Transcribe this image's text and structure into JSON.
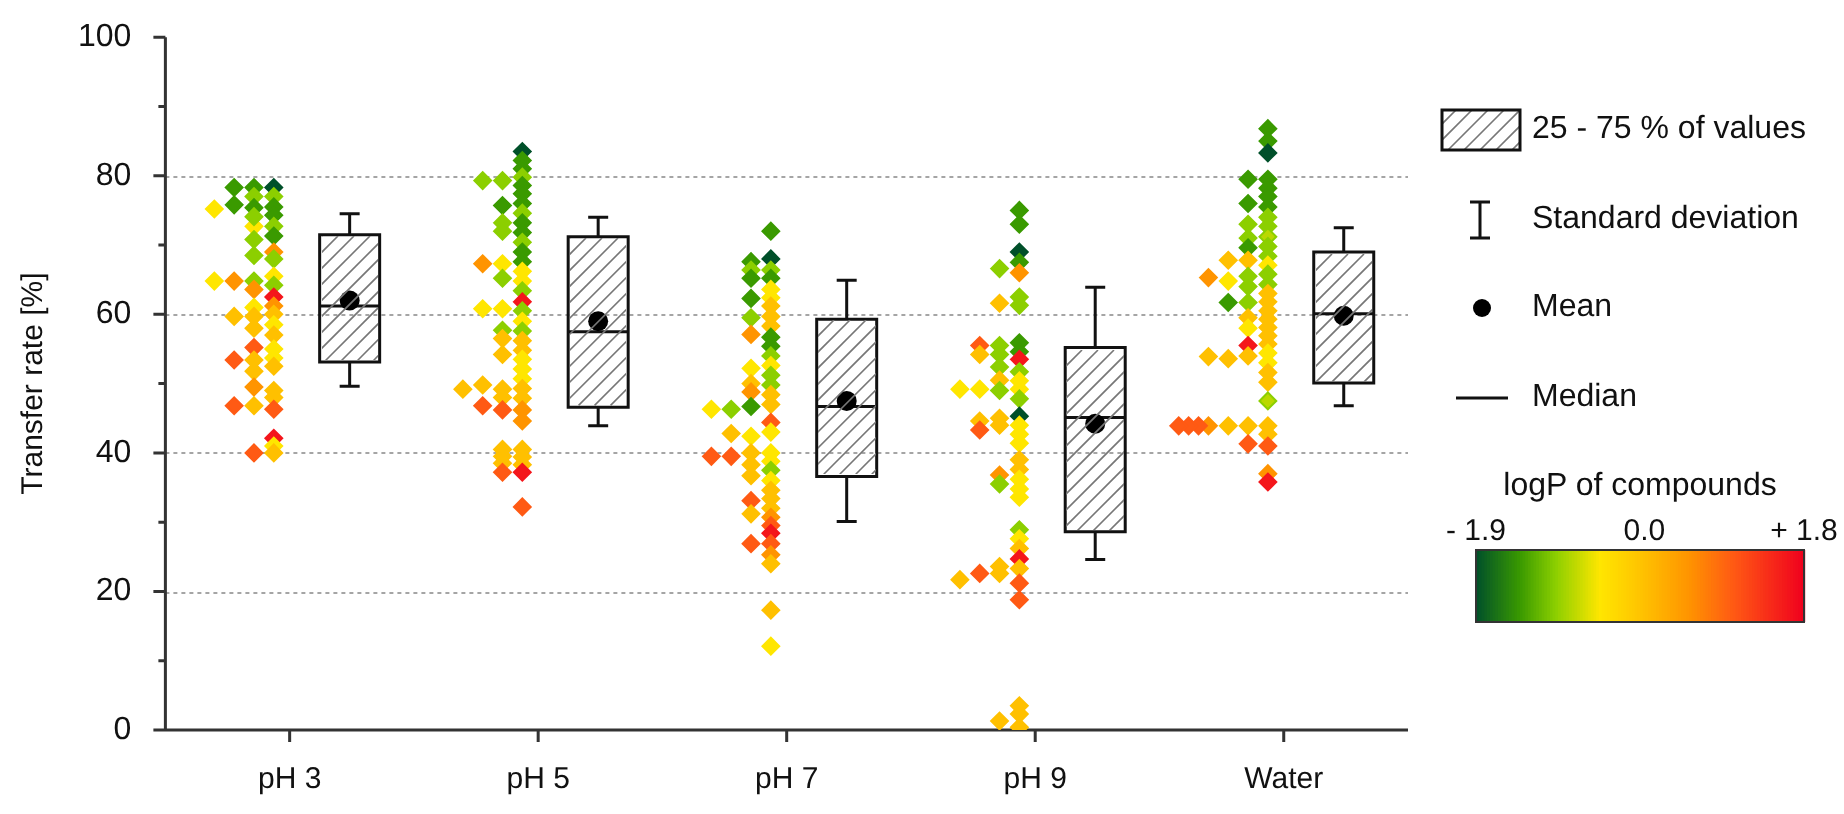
{
  "chart_data": {
    "type": "box",
    "ylabel": "Transfer rate [%]",
    "categories": [
      "pH 3",
      "pH 5",
      "pH 7",
      "pH 9",
      "Water"
    ],
    "ylim": [
      0,
      100
    ],
    "yticks": [
      0,
      {
        "value": 10,
        "label": null
      },
      20,
      {
        "value": 30,
        "label": null
      },
      40,
      {
        "value": 50,
        "label": null
      },
      60,
      {
        "value": 70,
        "label": null
      },
      80,
      {
        "value": 90,
        "label": null
      },
      100
    ],
    "grid": "y",
    "clabel": "logP of compounds",
    "clim": [
      -1.9,
      1.8
    ],
    "cticks": [
      {
        "value": -1.9,
        "label": "- 1.9"
      },
      {
        "value": 0,
        "label": "0.0"
      },
      {
        "value": 1.8,
        "label": "+ 1.8"
      }
    ],
    "annotations": [
      "25 - 75 % of values",
      "Standard deviation",
      "Mean",
      "Median"
    ],
    "series": [
      {
        "boxes": [
          {
            "low": 49.6,
            "q1": 53.1,
            "median": 61.2,
            "q3": 71.5,
            "high": 74.5,
            "mean": 62
          },
          {
            "low": 43.9,
            "q1": 46.6,
            "median": 57.5,
            "q3": 71.2,
            "high": 74,
            "mean": 59
          },
          {
            "low": 30.1,
            "q1": 36.6,
            "median": 46.7,
            "q3": 59.3,
            "high": 64.9,
            "mean": 47.5
          },
          {
            "low": 24.6,
            "q1": 28.6,
            "median": 45.1,
            "q3": 55.2,
            "high": 63.9,
            "mean": 44.2
          },
          {
            "low": 46.8,
            "q1": 50.1,
            "median": 60.1,
            "q3": 69,
            "high": 72.5,
            "mean": 59.8
          }
        ]
      },
      {
        "type": "scatter",
        "x": [
          "pH 3",
          "pH 3",
          "pH 3",
          "pH 3",
          "pH 3",
          "pH 3",
          "pH 3",
          "pH 3",
          "pH 3",
          "pH 3",
          "pH 3",
          "pH 3",
          "pH 3",
          "pH 3",
          "pH 3",
          "pH 3",
          "pH 3",
          "pH 3",
          "pH 3",
          "pH 3",
          "pH 3",
          "pH 3",
          "pH 3",
          "pH 3",
          "pH 3",
          "pH 3",
          "pH 3",
          "pH 3",
          "pH 3",
          "pH 3",
          "pH 3",
          "pH 3",
          "pH 3",
          "pH 3",
          "pH 3",
          "pH 3",
          "pH 3",
          "pH 3",
          "pH 3",
          "pH 3",
          "pH 3",
          "pH 3",
          "pH 3",
          "pH 3",
          "pH 3",
          "pH 3",
          "pH 3",
          "pH 3",
          "pH 3",
          "pH 3"
        ],
        "values": [
          78.3,
          77.0,
          75.5,
          74.3,
          72.7,
          71.3,
          69.0,
          68.0,
          65.5,
          64.2,
          62.5,
          61.2,
          60.0,
          58.5,
          57.0,
          55.0,
          53.7,
          52.5,
          49.0,
          48.0,
          46.3,
          42.1,
          41.0,
          40.0,
          78.3,
          77.0,
          75.4,
          72.7,
          70.8,
          68.5,
          64.8,
          63.6,
          61.0,
          59.7,
          58.0,
          55.2,
          53.4,
          51.8,
          49.5,
          46.8,
          40.0,
          78.3,
          75.8,
          74.1,
          64.8,
          59.7,
          53.4,
          46.8,
          75.2,
          64.8
        ],
        "cvalues": [
          -1.9,
          -1.0,
          -1.4,
          -1.4,
          -1.0,
          -1.4,
          0.5,
          -1.0,
          -0.5,
          -1.0,
          1.6,
          0.5,
          0,
          -0.5,
          0,
          -0.5,
          -0.5,
          0,
          0,
          0,
          1.0,
          1.6,
          -0.5,
          0,
          -1.4,
          -1.0,
          -1.4,
          -0.5,
          -1.0,
          -1.0,
          -1.0,
          0.5,
          -0.5,
          0,
          0,
          1.0,
          0,
          0,
          0.5,
          0,
          1.0,
          -1.4,
          -1.4,
          -1.0,
          0.5,
          0,
          1.0,
          1.0,
          -0.5,
          -0.5
        ],
        "colors": [
          "#00502a",
          "#8ccf00",
          "#3a9a00",
          "#3a9a00",
          "#8ccf00",
          "#3a9a00",
          "#ff9400",
          "#8ccf00",
          "#ffe600",
          "#8ccf00",
          "#f4161c",
          "#ff9400",
          "#ffc000",
          "#ffe600",
          "#ffc000",
          "#ffe600",
          "#ffe600",
          "#ffc000",
          "#ffc000",
          "#ffc000",
          "#ff5a14",
          "#f4161c",
          "#ffe600",
          "#ffc000",
          "#3a9a00",
          "#8ccf00",
          "#3a9a00",
          "#ffe600",
          "#8ccf00",
          "#8ccf00",
          "#8ccf00",
          "#ff9400",
          "#ffe600",
          "#ffc000",
          "#ffc000",
          "#ff5a14",
          "#ffc000",
          "#ffc000",
          "#ff9400",
          "#ffc000",
          "#ff5a14",
          "#3a9a00",
          "#3a9a00",
          "#8ccf00",
          "#ff9400",
          "#ffc000",
          "#ff5a14",
          "#ff5a14",
          "#ffe600",
          "#ffe600"
        ]
      },
      {
        "type": "scatter",
        "x": [
          "pH 5",
          "pH 5",
          "pH 5",
          "pH 5",
          "pH 5",
          "pH 5",
          "pH 5",
          "pH 5",
          "pH 5",
          "pH 5",
          "pH 5",
          "pH 5",
          "pH 5",
          "pH 5",
          "pH 5",
          "pH 5",
          "pH 5",
          "pH 5",
          "pH 5",
          "pH 5",
          "pH 5",
          "pH 5",
          "pH 5",
          "pH 5",
          "pH 5",
          "pH 5",
          "pH 5",
          "pH 5",
          "pH 5",
          "pH 5",
          "pH 5",
          "pH 5",
          "pH 5",
          "pH 5",
          "pH 5",
          "pH 5",
          "pH 5",
          "pH 5",
          "pH 5",
          "pH 5",
          "pH 5",
          "pH 5",
          "pH 5",
          "pH 5",
          "pH 5",
          "pH 5",
          "pH 5",
          "pH 5",
          "pH 5",
          "pH 5",
          "pH 5",
          "pH 5",
          "pH 5",
          "pH 5",
          "pH 5",
          "pH 5",
          "pH 5"
        ],
        "values": [
          83.5,
          82.2,
          81.0,
          79.8,
          78.6,
          77.4,
          76.0,
          74.6,
          73.2,
          71.8,
          70.4,
          69.0,
          67.6,
          66.2,
          64.8,
          63.4,
          61.8,
          60.5,
          59.0,
          57.6,
          56.2,
          54.8,
          53.5,
          52.1,
          50.7,
          49.3,
          47.9,
          46.2,
          44.6,
          40.5,
          39.4,
          38.3,
          37.2,
          32.2,
          79.3,
          75.7,
          73.2,
          72.0,
          67.3,
          65.2,
          60.8,
          57.7,
          56.5,
          54.2,
          49.2,
          48.0,
          46.2,
          40.5,
          39.5,
          38.5,
          37.2,
          79.3,
          67.3,
          60.8,
          49.8,
          46.8,
          49.2
        ],
        "cvalues": [
          -1.9,
          -1.4,
          -1.4,
          -1.0,
          -1.4,
          -1.4,
          -1.4,
          -1.0,
          -1.4,
          -1.4,
          -1.0,
          -1.4,
          -1.4,
          -0.5,
          -0.5,
          -1.0,
          1.6,
          -1.0,
          -0.5,
          -1.0,
          0,
          0,
          -0.5,
          -0.5,
          -0.5,
          0,
          0,
          0.5,
          0.5,
          0,
          0,
          0,
          1.6,
          1.0,
          -1.0,
          -1.4,
          -1.0,
          -1.0,
          -0.5,
          -1.0,
          -0.5,
          -1.0,
          0,
          0,
          0,
          0,
          1.0,
          0,
          0,
          0,
          1.0,
          -1.0,
          0.5,
          -0.5,
          0,
          1.0,
          0
        ],
        "colors": [
          "#00502a",
          "#3a9a00",
          "#3a9a00",
          "#8ccf00",
          "#3a9a00",
          "#3a9a00",
          "#3a9a00",
          "#8ccf00",
          "#3a9a00",
          "#3a9a00",
          "#8ccf00",
          "#3a9a00",
          "#3a9a00",
          "#ffe600",
          "#ffe600",
          "#8ccf00",
          "#f4161c",
          "#8ccf00",
          "#ffe600",
          "#8ccf00",
          "#ffc000",
          "#ffc000",
          "#ffe600",
          "#ffe600",
          "#ffe600",
          "#ffc000",
          "#ffc000",
          "#ff9400",
          "#ff9400",
          "#ffc000",
          "#ffc000",
          "#ffc000",
          "#f4161c",
          "#ff5a14",
          "#8ccf00",
          "#3a9a00",
          "#8ccf00",
          "#8ccf00",
          "#ffe600",
          "#8ccf00",
          "#ffe600",
          "#8ccf00",
          "#ffc000",
          "#ffc000",
          "#ffc000",
          "#ffc000",
          "#ff5a14",
          "#ffc000",
          "#ffc000",
          "#ffc000",
          "#ff5a14",
          "#8ccf00",
          "#ff9400",
          "#ffe600",
          "#ffc000",
          "#ff5a14",
          "#ffc000"
        ]
      },
      {
        "type": "scatter",
        "x": [
          "pH 7",
          "pH 7",
          "pH 7",
          "pH 7",
          "pH 7",
          "pH 7",
          "pH 7",
          "pH 7",
          "pH 7",
          "pH 7",
          "pH 7",
          "pH 7",
          "pH 7",
          "pH 7",
          "pH 7",
          "pH 7",
          "pH 7",
          "pH 7",
          "pH 7",
          "pH 7",
          "pH 7",
          "pH 7",
          "pH 7",
          "pH 7",
          "pH 7",
          "pH 7",
          "pH 7",
          "pH 7",
          "pH 7",
          "pH 7",
          "pH 7",
          "pH 7",
          "pH 7",
          "pH 7",
          "pH 7",
          "pH 7",
          "pH 7",
          "pH 7",
          "pH 7",
          "pH 7",
          "pH 7",
          "pH 7",
          "pH 7",
          "pH 7",
          "pH 7",
          "pH 7",
          "pH 7",
          "pH 7",
          "pH 7",
          "pH 7",
          "pH 7",
          "pH 7",
          "pH 7",
          "pH 7",
          "pH 7",
          "pH 7"
        ],
        "values": [
          72.0,
          68.0,
          66.4,
          65.2,
          63.6,
          62.4,
          61.2,
          59.7,
          58.3,
          56.7,
          55.4,
          54.0,
          52.6,
          51.2,
          49.8,
          48.4,
          47.0,
          44.4,
          43.0,
          40.0,
          38.8,
          37.5,
          36.0,
          34.6,
          33.4,
          32.0,
          30.7,
          29.5,
          28.4,
          26.9,
          25.3,
          24.0,
          17.3,
          12.1,
          67.6,
          66.4,
          62.3,
          59.5,
          57.1,
          52.2,
          50.0,
          48.8,
          46.7,
          42.4,
          40.0,
          38.3,
          36.7,
          33.1,
          31.2,
          26.9,
          65.2,
          46.3,
          42.8,
          39.5,
          46.3,
          39.5
        ],
        "cvalues": [
          -1.4,
          -1.9,
          -1.0,
          -1.4,
          -0.5,
          -0.5,
          0,
          0,
          0,
          -1.4,
          -1.4,
          -1.0,
          -0.5,
          -1.0,
          -1.0,
          0,
          0,
          1.0,
          -0.5,
          -0.5,
          -0.5,
          -1.0,
          -0.5,
          0,
          0,
          0,
          0.5,
          1.0,
          1.6,
          1.0,
          0.5,
          0,
          0,
          -0.5,
          -1.4,
          -1.0,
          -1.4,
          -1.0,
          0.5,
          -0.5,
          0,
          0.5,
          -1.4,
          -0.5,
          0,
          0,
          0,
          1.0,
          0,
          1.0,
          -1.4,
          -1.0,
          0,
          1.0,
          -0.5,
          1.0
        ],
        "colors": [
          "#3a9a00",
          "#00502a",
          "#8ccf00",
          "#3a9a00",
          "#ffe600",
          "#ffe600",
          "#ffc000",
          "#ffc000",
          "#ffc000",
          "#3a9a00",
          "#3a9a00",
          "#8ccf00",
          "#ffe600",
          "#8ccf00",
          "#8ccf00",
          "#ffc000",
          "#ffc000",
          "#ff5a14",
          "#ffe600",
          "#ffe600",
          "#ffe600",
          "#8ccf00",
          "#ffe600",
          "#ffc000",
          "#ffc000",
          "#ffc000",
          "#ff9400",
          "#ff5a14",
          "#f4161c",
          "#ff5a14",
          "#ff9400",
          "#ffc000",
          "#ffc000",
          "#ffe600",
          "#3a9a00",
          "#8ccf00",
          "#3a9a00",
          "#8ccf00",
          "#ff9400",
          "#ffe600",
          "#ffc000",
          "#ff9400",
          "#3a9a00",
          "#ffe600",
          "#ffc000",
          "#ffc000",
          "#ffc000",
          "#ff5a14",
          "#ffc000",
          "#ff5a14",
          "#3a9a00",
          "#8ccf00",
          "#ffc000",
          "#ff5a14",
          "#ffe600",
          "#ff5a14"
        ]
      },
      {
        "type": "scatter",
        "x": [
          "pH 9",
          "pH 9",
          "pH 9",
          "pH 9",
          "pH 9",
          "pH 9",
          "pH 9",
          "pH 9",
          "pH 9",
          "pH 9",
          "pH 9",
          "pH 9",
          "pH 9",
          "pH 9",
          "pH 9",
          "pH 9",
          "pH 9",
          "pH 9",
          "pH 9",
          "pH 9",
          "pH 9",
          "pH 9",
          "pH 9",
          "pH 9",
          "pH 9",
          "pH 9",
          "pH 9",
          "pH 9",
          "pH 9",
          "pH 9",
          "pH 9",
          "pH 9",
          "pH 9",
          "pH 9",
          "pH 9",
          "pH 9",
          "pH 9",
          "pH 9",
          "pH 9",
          "pH 9",
          "pH 9",
          "pH 9",
          "pH 9",
          "pH 9",
          "pH 9",
          "pH 9",
          "pH 9",
          "pH 9",
          "pH 9",
          "pH 9",
          "pH 9",
          "pH 9",
          "pH 9",
          "pH 9",
          "pH 9"
        ],
        "values": [
          75.0,
          73.0,
          69.0,
          67.5,
          66.0,
          62.5,
          61.3,
          55.9,
          54.6,
          53.5,
          51.7,
          50.4,
          49.2,
          47.8,
          45.3,
          44.0,
          42.7,
          41.4,
          39.0,
          37.6,
          36.2,
          34.8,
          33.6,
          28.9,
          27.6,
          26.2,
          24.7,
          23.3,
          21.2,
          18.8,
          3.5,
          2.3,
          1.3,
          0.4,
          66.6,
          61.6,
          55.5,
          54.2,
          52.4,
          50.5,
          49.0,
          45.0,
          44.0,
          36.8,
          35.5,
          23.6,
          22.6,
          55.5,
          54.2,
          49.2,
          44.6,
          43.3,
          22.6,
          21.7,
          49.2
        ],
        "cvalues": [
          -1.4,
          -1.4,
          -1.9,
          -1.4,
          0.5,
          -1.0,
          -1.0,
          -1.4,
          -1.4,
          1.6,
          -1.0,
          -0.5,
          -0.5,
          -1.0,
          -1.9,
          -0.5,
          -0.5,
          -0.5,
          0,
          0,
          -0.5,
          -0.5,
          -0.5,
          -1.0,
          -0.5,
          0,
          1.6,
          0,
          1.0,
          1.0,
          0,
          0,
          0,
          0,
          -1.0,
          0,
          -1.0,
          -1.0,
          -1.0,
          0,
          -1.0,
          0,
          0,
          0.5,
          -1.0,
          0,
          0,
          1.0,
          0,
          -0.5,
          0,
          1.0,
          1.0,
          0,
          -0.5
        ],
        "colors": [
          "#3a9a00",
          "#3a9a00",
          "#00502a",
          "#3a9a00",
          "#ff9400",
          "#8ccf00",
          "#8ccf00",
          "#3a9a00",
          "#3a9a00",
          "#f4161c",
          "#8ccf00",
          "#ffe600",
          "#ffe600",
          "#8ccf00",
          "#00502a",
          "#ffe600",
          "#ffe600",
          "#ffe600",
          "#ffc000",
          "#ffc000",
          "#ffe600",
          "#ffe600",
          "#ffe600",
          "#8ccf00",
          "#ffe600",
          "#ffc000",
          "#f4161c",
          "#ffc000",
          "#ff5a14",
          "#ff5a14",
          "#ffc000",
          "#ffc000",
          "#ffc000",
          "#ffc000",
          "#8ccf00",
          "#ffc000",
          "#8ccf00",
          "#8ccf00",
          "#8ccf00",
          "#ffc000",
          "#8ccf00",
          "#ffc000",
          "#ffc000",
          "#ff9400",
          "#8ccf00",
          "#ffc000",
          "#ffc000",
          "#ff5a14",
          "#ffc000",
          "#ffe600",
          "#ffc000",
          "#ff5a14",
          "#ff5a14",
          "#ffc000",
          "#ffe600"
        ]
      },
      {
        "type": "scatter",
        "x": [
          "Water",
          "Water",
          "Water",
          "Water",
          "Water",
          "Water",
          "Water",
          "Water",
          "Water",
          "Water",
          "Water",
          "Water",
          "Water",
          "Water",
          "Water",
          "Water",
          "Water",
          "Water",
          "Water",
          "Water",
          "Water",
          "Water",
          "Water",
          "Water",
          "Water",
          "Water",
          "Water",
          "Water",
          "Water",
          "Water",
          "Water",
          "Water",
          "Water",
          "Water",
          "Water",
          "Water",
          "Water",
          "Water",
          "Water",
          "Water",
          "Water",
          "Water",
          "Water",
          "Water",
          "Water",
          "Water",
          "Water",
          "Water",
          "Water",
          "Water",
          "Water",
          "Water",
          "Water",
          "Water",
          "Water",
          "Water",
          "Water",
          "Water"
        ],
        "values": [
          86.8,
          85.0,
          83.3,
          79.5,
          78.2,
          77.0,
          75.5,
          74.0,
          72.7,
          71.2,
          69.8,
          68.4,
          67.1,
          65.8,
          64.3,
          63.0,
          61.8,
          60.5,
          59.3,
          58.1,
          56.9,
          55.7,
          54.4,
          53.0,
          51.6,
          50.2,
          47.5,
          43.9,
          42.7,
          41.0,
          37.0,
          35.8,
          79.5,
          76.0,
          73.0,
          71.0,
          69.6,
          67.8,
          65.5,
          64.0,
          61.7,
          59.5,
          58.0,
          55.5,
          54.0,
          43.9,
          41.3,
          67.8,
          64.8,
          61.7,
          53.6,
          43.9,
          65.3,
          53.9,
          43.9,
          43.9,
          43.9,
          43.9
        ],
        "cvalues": [
          -1.4,
          -1.4,
          -1.9,
          -1.4,
          -1.4,
          -1.4,
          -1.4,
          -1.0,
          -1.0,
          -0.8,
          -1.0,
          -1.0,
          -0.5,
          -1.0,
          -1.0,
          0,
          0,
          0,
          0,
          0,
          0,
          0,
          -0.5,
          -0.5,
          0,
          0,
          -0.8,
          0,
          0,
          1.0,
          0.5,
          1.6,
          -1.4,
          -1.4,
          -1.0,
          -1.0,
          -1.4,
          0,
          -1.0,
          -1.0,
          -1.0,
          0,
          -0.5,
          1.6,
          0,
          0,
          1.0,
          0,
          -0.5,
          -1.4,
          0,
          0,
          0.5,
          0,
          0.5,
          1.0,
          1.0,
          1.0
        ],
        "colors": [
          "#3a9a00",
          "#3a9a00",
          "#00502a",
          "#3a9a00",
          "#3a9a00",
          "#3a9a00",
          "#3a9a00",
          "#8ccf00",
          "#8ccf00",
          "#8ccf00",
          "#8ccf00",
          "#8ccf00",
          "#ffe600",
          "#8ccf00",
          "#8ccf00",
          "#ffc000",
          "#ffc000",
          "#ffc000",
          "#ffc000",
          "#ffc000",
          "#ffc000",
          "#ffc000",
          "#ffe600",
          "#ffe600",
          "#ffc000",
          "#ffc000",
          "#8ccf00",
          "#ffc000",
          "#ffc000",
          "#ff5a14",
          "#ff9400",
          "#f4161c",
          "#3a9a00",
          "#3a9a00",
          "#8ccf00",
          "#8ccf00",
          "#3a9a00",
          "#ffc000",
          "#8ccf00",
          "#8ccf00",
          "#8ccf00",
          "#ffc000",
          "#ffe600",
          "#f4161c",
          "#ffc000",
          "#ffc000",
          "#ff5a14",
          "#ffc000",
          "#ffe600",
          "#3a9a00",
          "#ffc000",
          "#ffc000",
          "#ff9400",
          "#ffc000",
          "#ff9400",
          "#ff5a14",
          "#ff5a14",
          "#ff5a14"
        ]
      }
    ]
  }
}
